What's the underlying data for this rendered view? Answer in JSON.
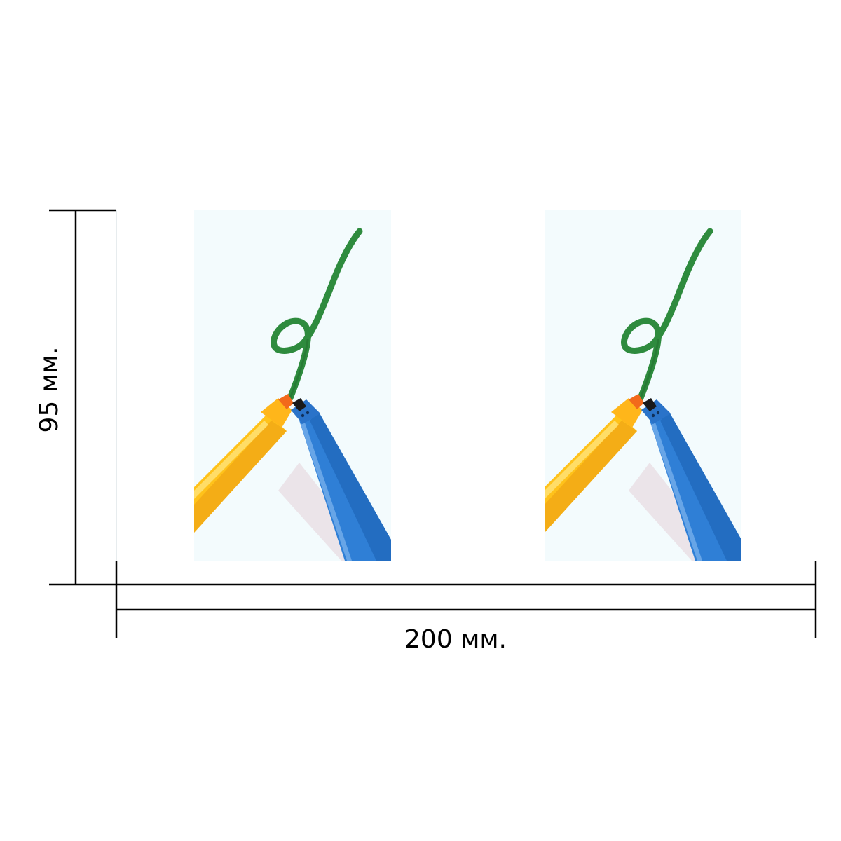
{
  "dimensions": {
    "height_label": "95 мм.",
    "width_label": "200 мм."
  },
  "panels": [
    {
      "illustration": "markers-writing-green-loop"
    },
    {
      "illustration": "markers-writing-green-loop"
    }
  ],
  "colors": {
    "ink": "#2e8b3e",
    "ink_dark": "#1f6b2c",
    "yellow_marker": "#ffc21a",
    "orange_tip": "#f26a1b",
    "blue_marker": "#2f7fd6",
    "blue_dark": "#1a5fb0",
    "panel_bg": "#f3fbfd",
    "line": "#000000"
  }
}
